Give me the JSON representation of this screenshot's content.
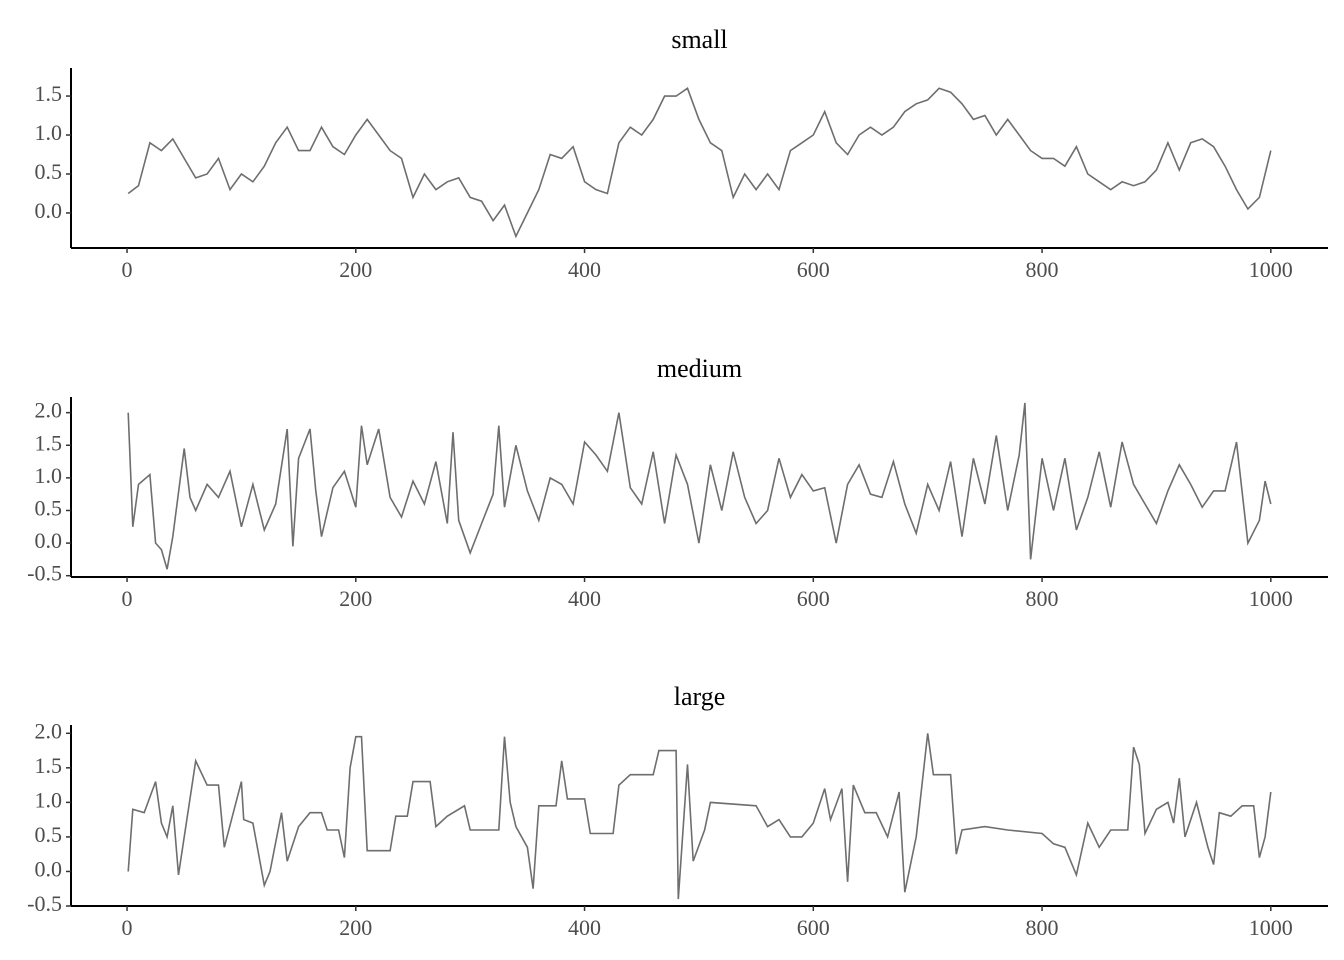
{
  "chart_data": [
    {
      "type": "line",
      "title": "small",
      "color": "#6e6e6e",
      "x": [
        1,
        10,
        20,
        30,
        40,
        50,
        60,
        70,
        80,
        90,
        100,
        110,
        120,
        130,
        140,
        150,
        160,
        170,
        180,
        190,
        200,
        210,
        220,
        230,
        240,
        250,
        260,
        270,
        280,
        290,
        300,
        310,
        320,
        330,
        340,
        350,
        360,
        370,
        380,
        390,
        400,
        410,
        420,
        430,
        440,
        450,
        460,
        470,
        480,
        490,
        500,
        510,
        520,
        530,
        540,
        550,
        560,
        570,
        580,
        590,
        600,
        610,
        620,
        630,
        640,
        650,
        660,
        670,
        680,
        690,
        700,
        710,
        720,
        730,
        740,
        750,
        760,
        770,
        780,
        790,
        800,
        810,
        820,
        830,
        840,
        850,
        860,
        870,
        880,
        890,
        900,
        910,
        920,
        930,
        940,
        950,
        960,
        970,
        980,
        990,
        1000
      ],
      "values": [
        0.25,
        0.35,
        0.9,
        0.8,
        0.95,
        0.7,
        0.45,
        0.5,
        0.7,
        0.3,
        0.5,
        0.4,
        0.6,
        0.9,
        1.1,
        0.8,
        0.8,
        1.1,
        0.85,
        0.75,
        1.0,
        1.2,
        1.0,
        0.8,
        0.7,
        0.2,
        0.5,
        0.3,
        0.4,
        0.45,
        0.2,
        0.15,
        -0.1,
        0.1,
        -0.3,
        0.0,
        0.3,
        0.75,
        0.7,
        0.85,
        0.4,
        0.3,
        0.25,
        0.9,
        1.1,
        1.0,
        1.2,
        1.5,
        1.5,
        1.6,
        1.2,
        0.9,
        0.8,
        0.2,
        0.5,
        0.3,
        0.5,
        0.3,
        0.8,
        0.9,
        1.0,
        1.3,
        0.9,
        0.75,
        1.0,
        1.1,
        1.0,
        1.1,
        1.3,
        1.4,
        1.45,
        1.6,
        1.55,
        1.4,
        1.2,
        1.25,
        1.0,
        1.2,
        1.0,
        0.8,
        0.7,
        0.7,
        0.6,
        0.85,
        0.5,
        0.4,
        0.3,
        0.4,
        0.35,
        0.4,
        0.55,
        0.9,
        0.55,
        0.9,
        0.95,
        0.85,
        0.6,
        0.3,
        0.05,
        0.2,
        0.8
      ],
      "xlim": [
        -49,
        1050
      ],
      "ylim": [
        -0.45,
        1.86
      ],
      "xticks": [
        0,
        200,
        400,
        600,
        800,
        1000
      ],
      "yticks": [
        {
          "value": 0,
          "label": "0.0"
        },
        0.5,
        {
          "value": 1,
          "label": "1.0"
        },
        1.5
      ]
    },
    {
      "type": "line",
      "title": "medium",
      "color": "#6e6e6e",
      "x": [
        1,
        5,
        10,
        20,
        25,
        30,
        35,
        40,
        50,
        55,
        60,
        70,
        80,
        90,
        100,
        110,
        120,
        130,
        140,
        145,
        150,
        160,
        165,
        170,
        180,
        190,
        200,
        205,
        210,
        220,
        230,
        240,
        250,
        260,
        270,
        280,
        285,
        290,
        300,
        310,
        320,
        325,
        330,
        340,
        350,
        360,
        370,
        380,
        390,
        400,
        410,
        420,
        430,
        440,
        450,
        460,
        470,
        480,
        490,
        500,
        510,
        520,
        530,
        540,
        550,
        560,
        570,
        580,
        590,
        600,
        610,
        620,
        630,
        640,
        650,
        660,
        670,
        680,
        690,
        700,
        710,
        720,
        730,
        740,
        750,
        760,
        770,
        780,
        785,
        790,
        800,
        810,
        820,
        830,
        840,
        850,
        860,
        870,
        880,
        890,
        900,
        910,
        920,
        930,
        940,
        950,
        960,
        970,
        980,
        990,
        995,
        1000
      ],
      "values": [
        2.0,
        0.25,
        0.9,
        1.05,
        0.0,
        -0.1,
        -0.4,
        0.1,
        1.45,
        0.7,
        0.5,
        0.9,
        0.7,
        1.1,
        0.25,
        0.9,
        0.2,
        0.6,
        1.75,
        -0.05,
        1.3,
        1.75,
        0.8,
        0.1,
        0.85,
        1.1,
        0.55,
        1.8,
        1.2,
        1.75,
        0.7,
        0.4,
        0.95,
        0.6,
        1.25,
        0.3,
        1.7,
        0.35,
        -0.15,
        0.3,
        0.75,
        1.8,
        0.55,
        1.5,
        0.8,
        0.35,
        1.0,
        0.9,
        0.6,
        1.55,
        1.35,
        1.1,
        2.0,
        0.85,
        0.6,
        1.4,
        0.3,
        1.35,
        0.9,
        0.0,
        1.2,
        0.5,
        1.4,
        0.7,
        0.3,
        0.5,
        1.3,
        0.7,
        1.05,
        0.8,
        0.85,
        0.0,
        0.9,
        1.2,
        0.75,
        0.7,
        1.25,
        0.6,
        0.15,
        0.9,
        0.5,
        1.25,
        0.1,
        1.3,
        0.6,
        1.65,
        0.5,
        1.35,
        2.15,
        -0.25,
        1.3,
        0.5,
        1.3,
        0.2,
        0.7,
        1.4,
        0.55,
        1.55,
        0.9,
        0.6,
        0.3,
        0.8,
        1.2,
        0.9,
        0.55,
        0.8,
        0.8,
        1.55,
        0.0,
        0.35,
        0.95,
        0.6
      ],
      "xlim": [
        -49,
        1050
      ],
      "ylim": [
        -0.52,
        2.24
      ],
      "xticks": [
        0,
        200,
        400,
        600,
        800,
        1000
      ],
      "yticks": [
        -0.5,
        {
          "value": 0,
          "label": "0.0"
        },
        0.5,
        {
          "value": 1,
          "label": "1.0"
        },
        1.5,
        {
          "value": 2,
          "label": "2.0"
        }
      ]
    },
    {
      "type": "line",
      "title": "large",
      "color": "#6e6e6e",
      "x": [
        1,
        5,
        15,
        25,
        30,
        35,
        40,
        45,
        60,
        70,
        80,
        85,
        100,
        102,
        110,
        120,
        125,
        135,
        140,
        150,
        160,
        170,
        175,
        185,
        190,
        195,
        200,
        205,
        210,
        230,
        235,
        245,
        250,
        265,
        270,
        280,
        295,
        300,
        325,
        330,
        335,
        340,
        350,
        355,
        360,
        375,
        380,
        385,
        400,
        405,
        425,
        430,
        440,
        460,
        465,
        480,
        482,
        490,
        495,
        505,
        510,
        550,
        560,
        570,
        580,
        590,
        600,
        610,
        615,
        625,
        630,
        635,
        645,
        655,
        665,
        675,
        680,
        690,
        700,
        705,
        720,
        725,
        730,
        750,
        770,
        800,
        810,
        820,
        830,
        840,
        850,
        860,
        875,
        880,
        885,
        890,
        900,
        910,
        915,
        920,
        925,
        935,
        945,
        950,
        955,
        965,
        975,
        985,
        990,
        995,
        1000
      ],
      "values": [
        0.0,
        0.9,
        0.85,
        1.3,
        0.7,
        0.5,
        0.95,
        -0.05,
        1.6,
        1.25,
        1.25,
        0.35,
        1.3,
        0.75,
        0.7,
        -0.2,
        0.0,
        0.85,
        0.15,
        0.65,
        0.85,
        0.85,
        0.6,
        0.6,
        0.2,
        1.5,
        1.95,
        1.95,
        0.3,
        0.3,
        0.8,
        0.8,
        1.3,
        1.3,
        0.65,
        0.8,
        0.95,
        0.6,
        0.6,
        1.95,
        1.0,
        0.65,
        0.35,
        -0.25,
        0.95,
        0.95,
        1.6,
        1.05,
        1.05,
        0.55,
        0.55,
        1.25,
        1.4,
        1.4,
        1.75,
        1.75,
        -0.4,
        1.55,
        0.15,
        0.6,
        1.0,
        0.95,
        0.65,
        0.75,
        0.5,
        0.5,
        0.7,
        1.2,
        0.75,
        1.2,
        -0.15,
        1.25,
        0.85,
        0.85,
        0.5,
        1.15,
        -0.3,
        0.5,
        2.0,
        1.4,
        1.4,
        0.25,
        0.6,
        0.65,
        0.6,
        0.55,
        0.4,
        0.35,
        -0.05,
        0.7,
        0.35,
        0.6,
        0.6,
        1.8,
        1.55,
        0.55,
        0.9,
        1.0,
        0.7,
        1.35,
        0.5,
        1.0,
        0.35,
        0.1,
        0.85,
        0.8,
        0.95,
        0.95,
        0.2,
        0.5,
        1.15
      ],
      "xlim": [
        -49,
        1050
      ],
      "ylim": [
        -0.5,
        2.12
      ],
      "xticks": [
        0,
        200,
        400,
        600,
        800,
        1000
      ],
      "yticks": [
        -0.5,
        {
          "value": 0,
          "label": "0.0"
        },
        0.5,
        {
          "value": 1,
          "label": "1.0"
        },
        1.5,
        {
          "value": 2,
          "label": "2.0"
        }
      ]
    }
  ]
}
